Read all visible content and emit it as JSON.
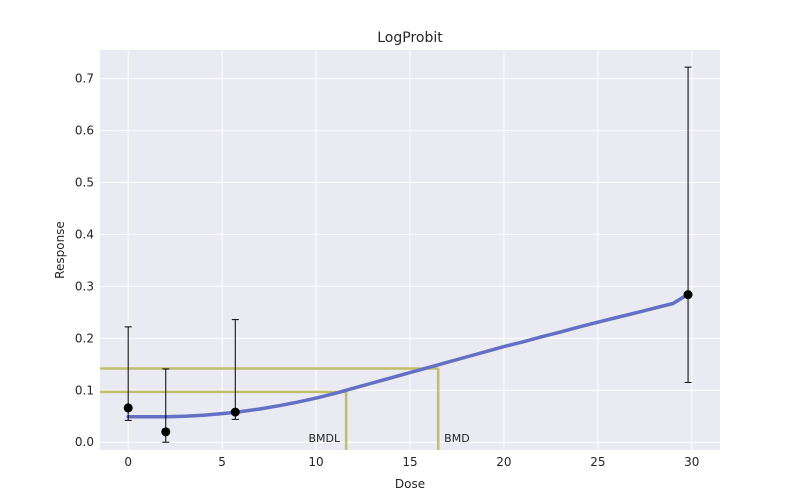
{
  "chart_data": {
    "type": "line",
    "title": "LogProbit",
    "xlabel": "Dose",
    "ylabel": "Response",
    "xlim": [
      -1.5,
      31.5
    ],
    "ylim": [
      -0.015,
      0.755
    ],
    "xticks": [
      0,
      5,
      10,
      15,
      20,
      25,
      30
    ],
    "yticks": [
      0.0,
      0.1,
      0.2,
      0.3,
      0.4,
      0.5,
      0.6,
      0.7
    ],
    "ytick_labels": [
      "0.0",
      "0.1",
      "0.2",
      "0.3",
      "0.4",
      "0.5",
      "0.6",
      "0.7"
    ],
    "grid": true,
    "observed": {
      "x": [
        0,
        2,
        5.7,
        29.8
      ],
      "y": [
        0.066,
        0.02,
        0.058,
        0.284
      ],
      "lower": [
        0.042,
        0.0,
        0.044,
        0.115
      ],
      "upper": [
        0.222,
        0.141,
        0.236,
        0.722
      ]
    },
    "fitted_curve": {
      "x": [
        0,
        1,
        2,
        3,
        4,
        5,
        6,
        7,
        8,
        9,
        10,
        11,
        12,
        13,
        14,
        15,
        16,
        17,
        18,
        19,
        20,
        21,
        22,
        23,
        24,
        25,
        26,
        27,
        28,
        29,
        29.8
      ],
      "y": [
        0.049,
        0.049,
        0.049,
        0.05,
        0.052,
        0.055,
        0.059,
        0.064,
        0.07,
        0.077,
        0.085,
        0.094,
        0.104,
        0.114,
        0.124,
        0.134,
        0.144,
        0.154,
        0.164,
        0.174,
        0.184,
        0.193,
        0.203,
        0.212,
        0.222,
        0.231,
        0.24,
        0.249,
        0.258,
        0.267,
        0.285
      ]
    },
    "bmdl": {
      "label": "BMDL",
      "x": 11.6,
      "y": 0.097
    },
    "bmd": {
      "label": "BMD",
      "x": 16.5,
      "y": 0.142
    },
    "colors": {
      "background": "#eaeaf2",
      "grid": "#ffffff",
      "curve": "#6470c4",
      "bmd_lines": "#bfbf6a",
      "points": "#000000"
    }
  }
}
